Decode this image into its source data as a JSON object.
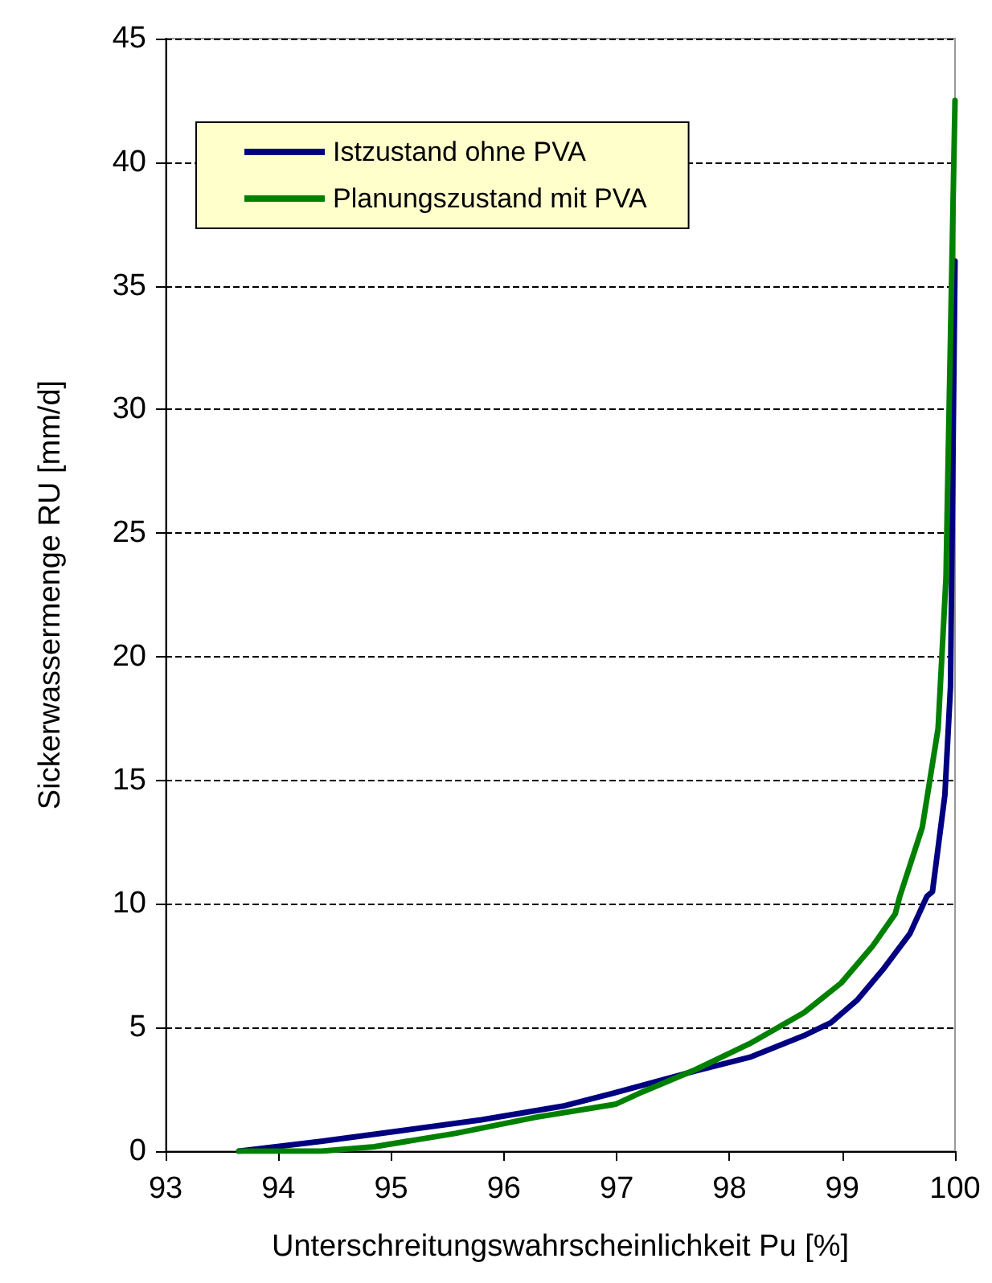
{
  "chart_data": {
    "type": "line",
    "xlabel": "Unterschreitungswahrscheinlichkeit Pu [%]",
    "ylabel": "Sickerwassermenge RU [mm/d]",
    "xlim": [
      93,
      100
    ],
    "xticks": [
      93,
      94,
      95,
      96,
      97,
      98,
      99,
      100
    ],
    "ylim": [
      0,
      45
    ],
    "yticks": [
      0,
      5,
      10,
      15,
      20,
      25,
      30,
      35,
      40,
      45
    ],
    "grid": "y",
    "legend": "top left",
    "marker": "none",
    "line_style": "solid",
    "series": [
      {
        "name": "Istzustand ohne PVA",
        "color": "#000080",
        "x": [
          93.65,
          94.38,
          95.09,
          95.8,
          96.52,
          96.99,
          97.7,
          98.18,
          98.66,
          98.9,
          99.13,
          99.37,
          99.6,
          99.75,
          99.8,
          99.91,
          99.96,
          100
        ],
        "values": [
          0,
          0.4,
          0.83,
          1.27,
          1.82,
          2.37,
          3.25,
          3.8,
          4.67,
          5.2,
          6.1,
          7.4,
          8.8,
          10.3,
          10.5,
          14.4,
          18.8,
          36
        ]
      },
      {
        "name": "Planungszustand mit PVA",
        "color": "#008000",
        "x": [
          93.65,
          94.38,
          94.85,
          95.57,
          96.28,
          96.99,
          97.23,
          97.7,
          98.18,
          98.66,
          98.99,
          99.27,
          99.47,
          99.51,
          99.71,
          99.85,
          99.92,
          99.94,
          100
        ],
        "values": [
          0,
          0,
          0.18,
          0.72,
          1.37,
          1.9,
          2.4,
          3.3,
          4.35,
          5.6,
          6.8,
          8.3,
          9.6,
          10.3,
          13.1,
          17.1,
          23.2,
          28.2,
          42.5
        ]
      }
    ]
  }
}
